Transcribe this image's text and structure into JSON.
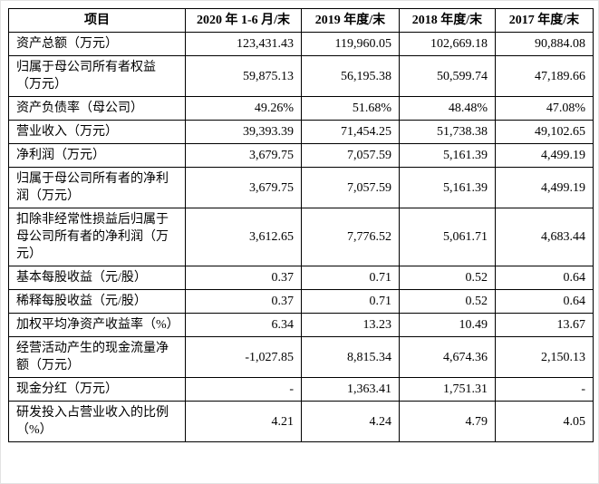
{
  "table": {
    "headers": [
      "项目",
      "2020 年 1-6 月/末",
      "2019 年度/末",
      "2018 年度/末",
      "2017 年度/末"
    ],
    "rows": [
      {
        "label": "资产总额（万元）",
        "values": [
          "123,431.43",
          "119,960.05",
          "102,669.18",
          "90,884.08"
        ]
      },
      {
        "label": "归属于母公司所有者权益（万元）",
        "values": [
          "59,875.13",
          "56,195.38",
          "50,599.74",
          "47,189.66"
        ]
      },
      {
        "label": "资产负债率（母公司）",
        "values": [
          "49.26%",
          "51.68%",
          "48.48%",
          "47.08%"
        ]
      },
      {
        "label": "营业收入（万元）",
        "values": [
          "39,393.39",
          "71,454.25",
          "51,738.38",
          "49,102.65"
        ]
      },
      {
        "label": "净利润（万元）",
        "values": [
          "3,679.75",
          "7,057.59",
          "5,161.39",
          "4,499.19"
        ]
      },
      {
        "label": "归属于母公司所有者的净利润（万元）",
        "values": [
          "3,679.75",
          "7,057.59",
          "5,161.39",
          "4,499.19"
        ]
      },
      {
        "label": "扣除非经常性损益后归属于母公司所有者的净利润（万元）",
        "values": [
          "3,612.65",
          "7,776.52",
          "5,061.71",
          "4,683.44"
        ]
      },
      {
        "label": "基本每股收益（元/股）",
        "values": [
          "0.37",
          "0.71",
          "0.52",
          "0.64"
        ]
      },
      {
        "label": "稀释每股收益（元/股）",
        "values": [
          "0.37",
          "0.71",
          "0.52",
          "0.64"
        ]
      },
      {
        "label": "加权平均净资产收益率（%）",
        "values": [
          "6.34",
          "13.23",
          "10.49",
          "13.67"
        ]
      },
      {
        "label": "经营活动产生的现金流量净额（万元）",
        "values": [
          "-1,027.85",
          "8,815.34",
          "4,674.36",
          "2,150.13"
        ]
      },
      {
        "label": "现金分红（万元）",
        "values": [
          "-",
          "1,363.41",
          "1,751.31",
          "-"
        ]
      },
      {
        "label": "研发投入占营业收入的比例（%）",
        "values": [
          "4.21",
          "4.24",
          "4.79",
          "4.05"
        ]
      }
    ]
  }
}
